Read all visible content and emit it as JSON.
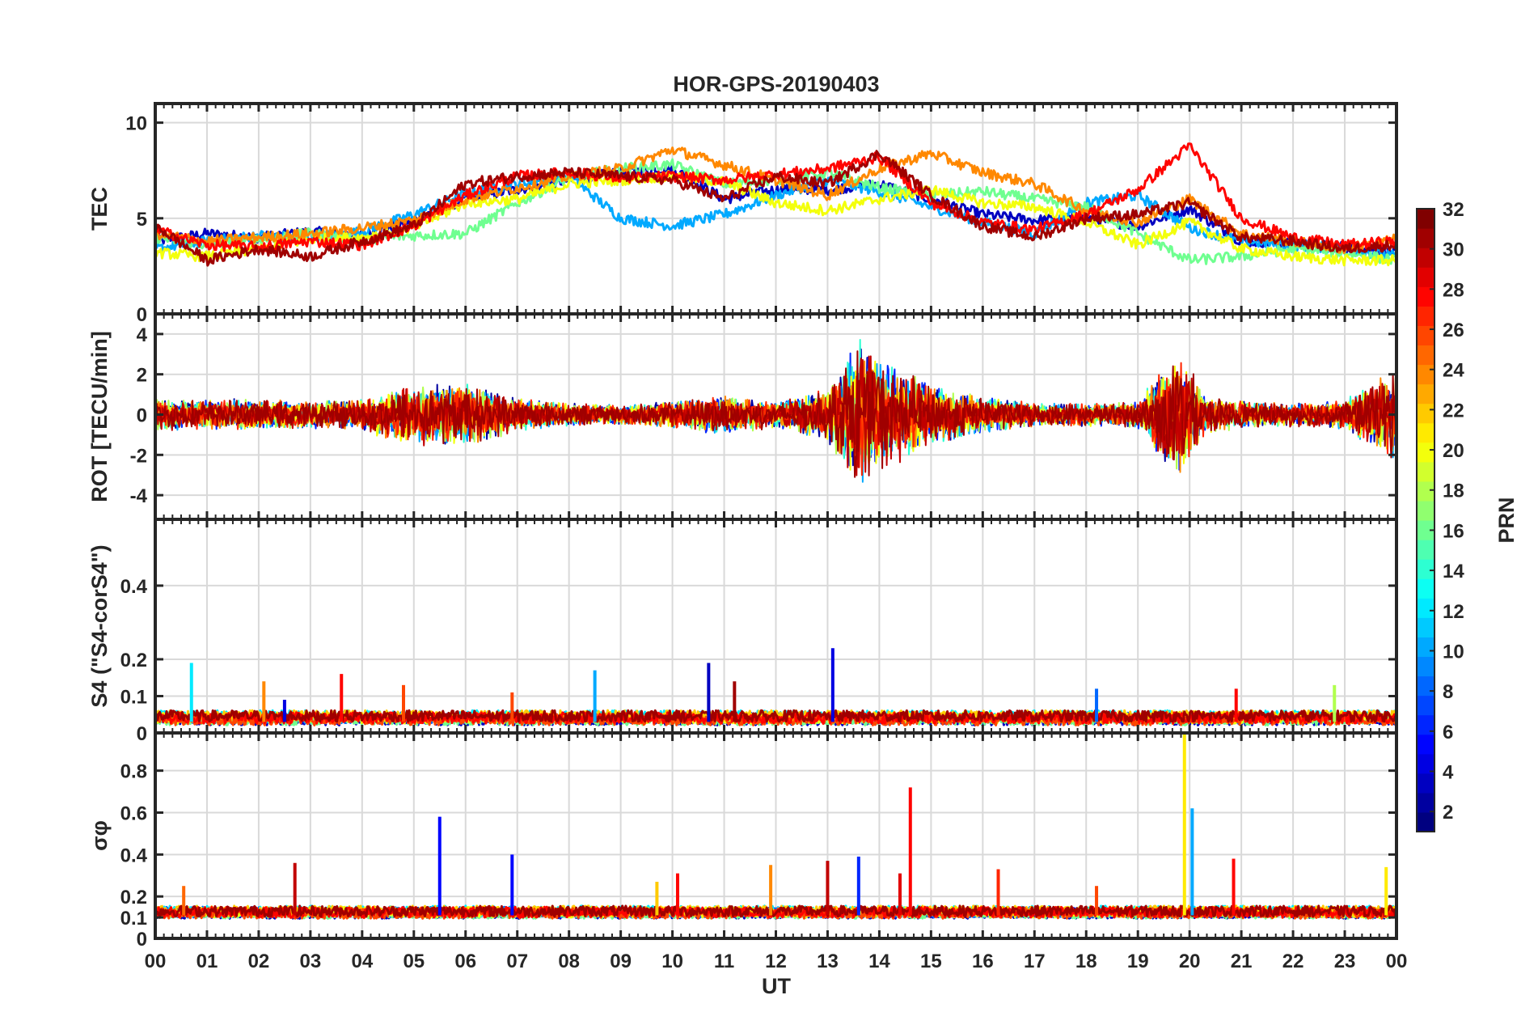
{
  "chart_data": {
    "type": "line",
    "title": "HOR-GPS-20190403",
    "xlabel": "UT",
    "xlim": [
      0,
      24
    ],
    "x_ticks": [
      0,
      1,
      2,
      3,
      4,
      5,
      6,
      7,
      8,
      9,
      10,
      11,
      12,
      13,
      14,
      15,
      16,
      17,
      18,
      19,
      20,
      21,
      22,
      23,
      24
    ],
    "x_tick_labels": [
      "00",
      "01",
      "02",
      "03",
      "04",
      "05",
      "06",
      "07",
      "08",
      "09",
      "10",
      "11",
      "12",
      "13",
      "14",
      "15",
      "16",
      "17",
      "18",
      "19",
      "20",
      "21",
      "22",
      "23",
      "00"
    ],
    "grid": true,
    "colorbar": {
      "label": "PRN",
      "range": [
        1,
        32
      ],
      "ticks": [
        2,
        4,
        6,
        8,
        10,
        12,
        14,
        16,
        18,
        20,
        22,
        24,
        26,
        28,
        30,
        32
      ],
      "tick_labels": [
        "2",
        "4",
        "6",
        "8",
        "10",
        "12",
        "14",
        "16",
        "18",
        "20",
        "22",
        "24",
        "26",
        "28",
        "30",
        "32"
      ],
      "colormap": "jet",
      "placement": "right"
    },
    "panels": [
      {
        "id": "tec",
        "ylabel": "TEC",
        "ylim": [
          0,
          11
        ],
        "y_ticks": [
          0,
          5,
          10
        ],
        "y_tick_labels": [
          "0",
          "5",
          "10"
        ],
        "baseline": 4.2,
        "series": [
          {
            "prn": 3,
            "x": [
              0.0,
              1.0,
              2.0,
              3.0,
              4.0,
              5.0,
              6.0,
              7.0,
              8.0,
              9.0,
              10.0,
              11.0,
              12.0,
              13.0,
              14.0,
              15.0,
              16.0,
              17.0,
              18.0,
              19.0,
              20.0,
              21.0,
              22.0,
              23.0,
              24.0
            ],
            "y": [
              3.8,
              4.2,
              4.0,
              4.3,
              4.1,
              4.9,
              6.0,
              6.5,
              7.0,
              7.4,
              7.6,
              6.0,
              6.5,
              6.5,
              6.8,
              6.0,
              5.2,
              4.9,
              5.0,
              4.6,
              5.5,
              3.8,
              3.7,
              3.5,
              3.2
            ]
          },
          {
            "prn": 10,
            "x": [
              0.0,
              1.0,
              2.0,
              3.0,
              4.0,
              5.0,
              6.0,
              7.0,
              8.0,
              9.0,
              10.0,
              11.0,
              12.0,
              13.0,
              14.0,
              15.0,
              16.0,
              17.0,
              18.0,
              19.0,
              20.0,
              21.0,
              22.0,
              23.0,
              24.0
            ],
            "y": [
              3.4,
              3.8,
              4.1,
              4.0,
              4.3,
              5.2,
              6.3,
              6.8,
              7.2,
              5.0,
              4.6,
              5.2,
              6.2,
              7.0,
              6.4,
              5.6,
              4.8,
              4.2,
              5.8,
              6.2,
              4.5,
              3.8,
              3.6,
              3.4,
              3.0
            ]
          },
          {
            "prn": 16,
            "x": [
              0.0,
              1.0,
              2.0,
              3.0,
              4.0,
              5.0,
              6.0,
              7.0,
              8.0,
              9.0,
              10.0,
              11.0,
              12.0,
              13.0,
              14.0,
              15.0,
              16.0,
              17.0,
              18.0,
              19.0,
              20.0,
              21.0,
              22.0,
              23.0,
              24.0
            ],
            "y": [
              4.0,
              3.6,
              3.9,
              4.2,
              3.9,
              4.1,
              4.2,
              5.8,
              7.1,
              7.6,
              7.8,
              6.8,
              7.0,
              7.4,
              6.6,
              6.2,
              6.4,
              6.0,
              5.6,
              4.2,
              2.8,
              3.0,
              3.4,
              3.2,
              2.8
            ]
          },
          {
            "prn": 20,
            "x": [
              0.0,
              1.0,
              2.0,
              3.0,
              4.0,
              5.0,
              6.0,
              7.0,
              8.0,
              9.0,
              10.0,
              11.0,
              12.0,
              13.0,
              14.0,
              15.0,
              16.0,
              17.0,
              18.0,
              19.0,
              20.0,
              21.0,
              22.0,
              23.0,
              24.0
            ],
            "y": [
              3.2,
              3.0,
              3.4,
              3.9,
              4.0,
              4.5,
              5.8,
              6.0,
              6.8,
              7.0,
              7.2,
              6.9,
              5.8,
              5.4,
              6.0,
              6.5,
              5.8,
              5.6,
              4.8,
              3.6,
              4.8,
              3.4,
              3.0,
              2.8,
              2.8
            ]
          },
          {
            "prn": 24,
            "x": [
              0.0,
              1.0,
              2.0,
              3.0,
              4.0,
              5.0,
              6.0,
              7.0,
              8.0,
              9.0,
              10.0,
              11.0,
              12.0,
              13.0,
              14.0,
              15.0,
              16.0,
              17.0,
              18.0,
              19.0,
              20.0,
              21.0,
              22.0,
              23.0,
              24.0
            ],
            "y": [
              4.2,
              3.8,
              4.0,
              4.2,
              4.5,
              4.9,
              6.0,
              6.6,
              7.2,
              7.6,
              8.6,
              7.8,
              7.0,
              6.2,
              7.6,
              8.4,
              7.4,
              6.8,
              5.4,
              4.8,
              6.0,
              4.2,
              3.8,
              3.4,
              3.9
            ]
          },
          {
            "prn": 28,
            "x": [
              0.0,
              1.0,
              2.0,
              3.0,
              4.0,
              5.0,
              6.0,
              7.0,
              8.0,
              9.0,
              10.0,
              11.0,
              12.0,
              13.0,
              14.0,
              15.0,
              16.0,
              17.0,
              18.0,
              19.0,
              20.0,
              21.0,
              22.0,
              23.0,
              24.0
            ],
            "y": [
              4.4,
              3.6,
              3.5,
              3.8,
              3.6,
              4.6,
              6.2,
              7.2,
              7.4,
              7.1,
              7.2,
              7.0,
              7.3,
              7.6,
              8.2,
              5.8,
              4.8,
              4.4,
              5.2,
              6.5,
              8.8,
              5.0,
              4.0,
              3.6,
              3.8
            ]
          },
          {
            "prn": 31,
            "x": [
              0.0,
              1.0,
              2.0,
              3.0,
              4.0,
              5.0,
              6.0,
              7.0,
              8.0,
              9.0,
              10.0,
              11.0,
              12.0,
              13.0,
              14.0,
              15.0,
              16.0,
              17.0,
              18.0,
              19.0,
              20.0,
              21.0,
              22.0,
              23.0,
              24.0
            ],
            "y": [
              4.6,
              2.8,
              3.4,
              3.0,
              3.8,
              4.6,
              6.8,
              7.2,
              7.4,
              7.2,
              7.0,
              6.0,
              7.2,
              6.8,
              8.4,
              6.2,
              4.6,
              4.0,
              5.0,
              5.2,
              5.8,
              4.0,
              3.8,
              3.4,
              3.6
            ]
          }
        ]
      },
      {
        "id": "rot",
        "ylabel": "ROT [TECU/min]",
        "ylim": [
          -5.2,
          5.0
        ],
        "y_ticks": [
          -4,
          -2,
          0,
          2,
          4
        ],
        "y_tick_labels": [
          "-4",
          "-2",
          "0",
          "2",
          "4"
        ],
        "baseline": 0,
        "envelope": {
          "x": [
            0.0,
            1.0,
            2.0,
            3.0,
            4.0,
            4.9,
            5.3,
            6.0,
            7.0,
            8.0,
            9.0,
            10.0,
            11.0,
            12.0,
            13.0,
            13.6,
            14.0,
            15.0,
            16.0,
            17.0,
            18.0,
            19.0,
            19.8,
            20.3,
            21.0,
            22.0,
            23.0,
            24.0
          ],
          "y": [
            0.8,
            0.8,
            0.8,
            0.7,
            0.8,
            1.6,
            1.6,
            1.6,
            0.9,
            0.6,
            0.5,
            0.7,
            1.0,
            0.7,
            1.3,
            4.3,
            3.0,
            1.6,
            1.0,
            0.6,
            0.6,
            0.7,
            3.5,
            1.0,
            0.7,
            0.6,
            0.8,
            2.4
          ]
        }
      },
      {
        "id": "s4",
        "ylabel": "S4 (\"S4-corS4\")",
        "ylim": [
          0,
          0.58
        ],
        "y_ticks": [
          0,
          0.1,
          0.2,
          0.4
        ],
        "y_tick_labels": [
          "0",
          "0.1",
          "0.2",
          "0.4"
        ],
        "baseline": 0.03,
        "spikes": [
          {
            "x": 0.7,
            "y": 0.19,
            "prn": 12
          },
          {
            "x": 2.1,
            "y": 0.14,
            "prn": 24
          },
          {
            "x": 2.5,
            "y": 0.09,
            "prn": 4
          },
          {
            "x": 3.6,
            "y": 0.16,
            "prn": 28
          },
          {
            "x": 4.8,
            "y": 0.13,
            "prn": 26
          },
          {
            "x": 6.9,
            "y": 0.11,
            "prn": 26
          },
          {
            "x": 8.5,
            "y": 0.17,
            "prn": 10
          },
          {
            "x": 10.7,
            "y": 0.19,
            "prn": 3
          },
          {
            "x": 11.2,
            "y": 0.14,
            "prn": 31
          },
          {
            "x": 13.1,
            "y": 0.23,
            "prn": 4
          },
          {
            "x": 18.2,
            "y": 0.12,
            "prn": 8
          },
          {
            "x": 20.9,
            "y": 0.12,
            "prn": 28
          },
          {
            "x": 22.8,
            "y": 0.13,
            "prn": 18
          }
        ]
      },
      {
        "id": "sigma_phi",
        "ylabel": "σφ",
        "ylim": [
          0,
          0.98
        ],
        "y_ticks": [
          0,
          0.1,
          0.2,
          0.4,
          0.6,
          0.8
        ],
        "y_tick_labels": [
          "0",
          "0.1",
          "0.2",
          "0.4",
          "0.6",
          "0.8"
        ],
        "baseline": 0.11,
        "spikes": [
          {
            "x": 0.55,
            "y": 0.25,
            "prn": 25
          },
          {
            "x": 2.7,
            "y": 0.36,
            "prn": 30
          },
          {
            "x": 5.5,
            "y": 0.58,
            "prn": 5
          },
          {
            "x": 6.9,
            "y": 0.4,
            "prn": 5
          },
          {
            "x": 9.7,
            "y": 0.27,
            "prn": 22
          },
          {
            "x": 10.1,
            "y": 0.31,
            "prn": 28
          },
          {
            "x": 11.9,
            "y": 0.35,
            "prn": 24
          },
          {
            "x": 13.0,
            "y": 0.37,
            "prn": 30
          },
          {
            "x": 13.6,
            "y": 0.39,
            "prn": 6
          },
          {
            "x": 14.4,
            "y": 0.31,
            "prn": 29
          },
          {
            "x": 14.6,
            "y": 0.72,
            "prn": 28
          },
          {
            "x": 16.3,
            "y": 0.33,
            "prn": 27
          },
          {
            "x": 18.2,
            "y": 0.25,
            "prn": 26
          },
          {
            "x": 19.9,
            "y": 0.98,
            "prn": 21
          },
          {
            "x": 20.05,
            "y": 0.62,
            "prn": 10
          },
          {
            "x": 20.85,
            "y": 0.38,
            "prn": 28
          },
          {
            "x": 23.8,
            "y": 0.34,
            "prn": 21
          }
        ]
      }
    ]
  }
}
